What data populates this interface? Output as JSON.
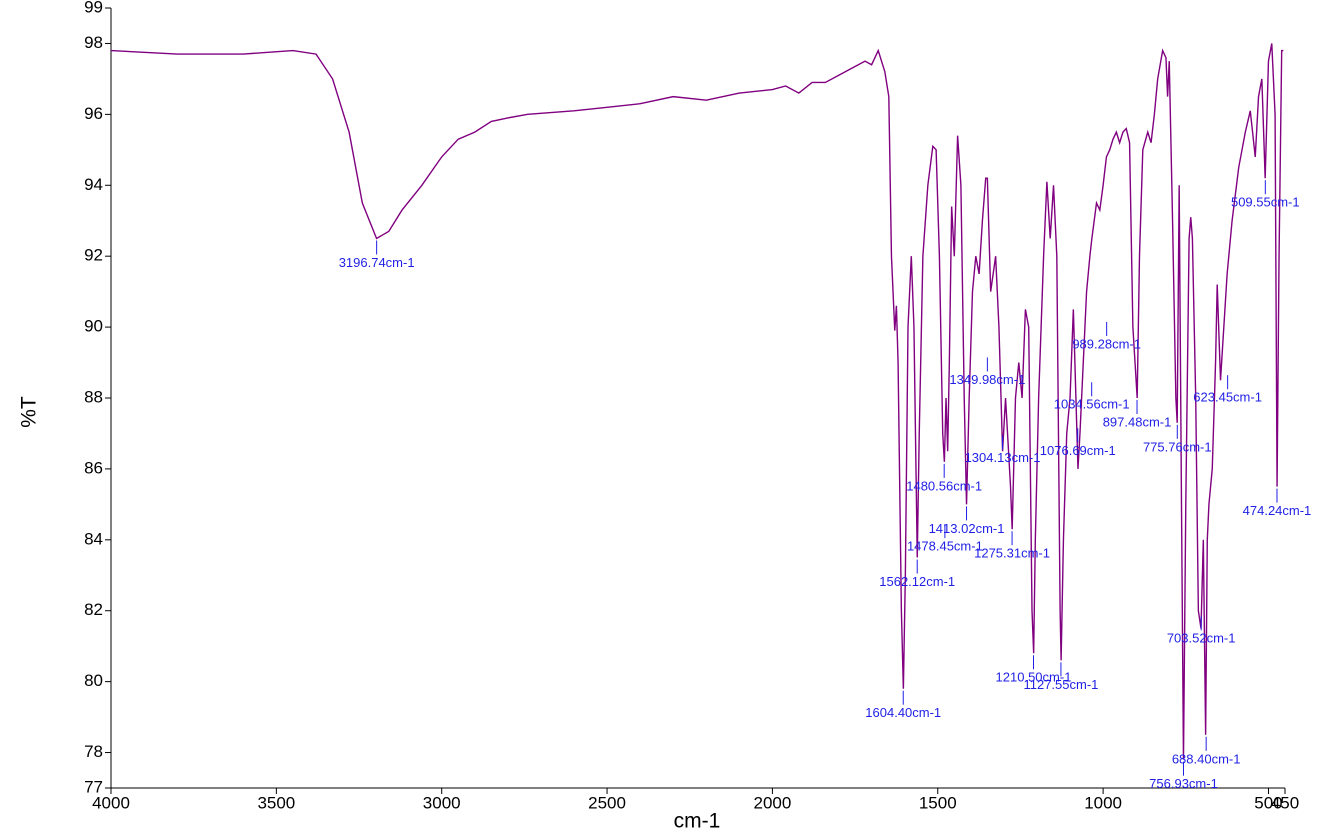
{
  "chart_data": {
    "type": "line",
    "x_label": "cm-1",
    "y_label": "%T",
    "color": "#800080",
    "annotation_color": "#1f1fe6",
    "xlim": [
      4000,
      450
    ],
    "ylim": [
      77,
      99
    ],
    "xticks": [
      4000,
      3500,
      3000,
      2500,
      2000,
      1500,
      1000,
      500,
      450
    ],
    "yticks": [
      77,
      78,
      80,
      82,
      84,
      86,
      88,
      90,
      92,
      94,
      96,
      98,
      99
    ],
    "x": [
      4000,
      3800,
      3600,
      3450,
      3380,
      3330,
      3280,
      3240,
      3197,
      3160,
      3120,
      3060,
      3000,
      2950,
      2900,
      2850,
      2800,
      2740,
      2600,
      2500,
      2400,
      2300,
      2200,
      2100,
      2000,
      1960,
      1920,
      1880,
      1840,
      1800,
      1760,
      1720,
      1700,
      1680,
      1660,
      1648,
      1640,
      1630,
      1625,
      1620,
      1610,
      1604,
      1598,
      1590,
      1580,
      1572,
      1562,
      1556,
      1545,
      1530,
      1515,
      1505,
      1495,
      1485,
      1480,
      1475,
      1470,
      1465,
      1458,
      1450,
      1440,
      1430,
      1420,
      1413,
      1405,
      1395,
      1385,
      1375,
      1365,
      1355,
      1350,
      1340,
      1325,
      1315,
      1304,
      1295,
      1280,
      1275,
      1265,
      1255,
      1245,
      1235,
      1225,
      1215,
      1210,
      1205,
      1195,
      1180,
      1170,
      1160,
      1150,
      1140,
      1130,
      1127,
      1120,
      1110,
      1100,
      1090,
      1076,
      1070,
      1060,
      1050,
      1040,
      1034,
      1020,
      1010,
      1000,
      990,
      980,
      970,
      960,
      950,
      940,
      930,
      920,
      910,
      897,
      890,
      880,
      865,
      855,
      845,
      835,
      820,
      810,
      805,
      800,
      790,
      780,
      776,
      770,
      763,
      757,
      750,
      740,
      735,
      730,
      720,
      712,
      704,
      697,
      690,
      685,
      680,
      670,
      660,
      655,
      645,
      635,
      625,
      610,
      590,
      570,
      555,
      540,
      530,
      520,
      510,
      500,
      490,
      480,
      474,
      468,
      460,
      455
    ],
    "values": [
      97.8,
      97.7,
      97.7,
      97.8,
      97.7,
      97.0,
      95.5,
      93.5,
      92.5,
      92.7,
      93.3,
      94.0,
      94.8,
      95.3,
      95.5,
      95.8,
      95.9,
      96.0,
      96.1,
      96.2,
      96.3,
      96.5,
      96.4,
      96.6,
      96.7,
      96.8,
      96.6,
      96.9,
      96.9,
      97.1,
      97.3,
      97.5,
      97.4,
      97.8,
      97.2,
      96.5,
      92,
      89.9,
      90.6,
      89,
      82,
      79.8,
      83,
      90,
      92.0,
      90,
      83.5,
      87,
      92,
      94,
      95.1,
      95,
      92,
      87,
      86.2,
      88,
      86.5,
      89,
      93.4,
      92,
      95.4,
      94,
      88,
      85,
      88,
      91,
      92,
      91.5,
      93,
      94.2,
      94.2,
      91,
      92,
      90,
      86.5,
      88,
      85.5,
      84.3,
      88,
      89,
      88,
      90.5,
      90,
      82,
      80.8,
      84,
      88,
      92,
      94.1,
      92.5,
      94.0,
      92,
      82,
      80.6,
      84,
      87,
      88,
      90.5,
      86,
      87,
      89,
      91,
      92,
      92.5,
      93.5,
      93.3,
      94,
      94.8,
      95.0,
      95.3,
      95.5,
      95.2,
      95.5,
      95.6,
      95.2,
      90,
      88,
      92,
      95,
      95.5,
      95.2,
      96.0,
      97.0,
      97.8,
      97.6,
      96.5,
      97.5,
      93,
      88,
      87.3,
      94,
      85,
      77.8,
      85,
      92.5,
      93.1,
      92.5,
      88,
      82,
      81.5,
      84,
      78.5,
      84,
      85,
      86,
      89,
      91.2,
      88.5,
      90,
      91.5,
      93,
      94.5,
      95.5,
      96.1,
      94.8,
      96.5,
      97,
      94.2,
      97.5,
      98,
      96,
      85.5,
      92,
      97.8,
      97.8
    ],
    "annotations": [
      {
        "label": "3196.74cm-1",
        "x": 3196.74,
        "y": 92.5
      },
      {
        "label": "1604.40cm-1",
        "x": 1604.4,
        "y": 79.8
      },
      {
        "label": "1562.12cm-1",
        "x": 1562.12,
        "y": 83.5
      },
      {
        "label": "1480.56cm-1",
        "x": 1480.56,
        "y": 86.2
      },
      {
        "label": "1478.45cm-1",
        "x": 1478.45,
        "y": 84.5
      },
      {
        "label": "1413.02cm-1",
        "x": 1413.02,
        "y": 85
      },
      {
        "label": "1349.98cm-1",
        "x": 1349.98,
        "y": 89.2
      },
      {
        "label": "1304.13cm-1",
        "x": 1304.13,
        "y": 87
      },
      {
        "label": "1275.31cm-1",
        "x": 1275.31,
        "y": 84.3
      },
      {
        "label": "1210.50cm-1",
        "x": 1210.5,
        "y": 80.8
      },
      {
        "label": "1127.55cm-1",
        "x": 1127.55,
        "y": 80.6
      },
      {
        "label": "1076.69cm-1",
        "x": 1076.69,
        "y": 87.2
      },
      {
        "label": "1034.56cm-1",
        "x": 1034.56,
        "y": 88.5
      },
      {
        "label": "989.28cm-1",
        "x": 989.28,
        "y": 90.2
      },
      {
        "label": "897.48cm-1",
        "x": 897.48,
        "y": 88
      },
      {
        "label": "775.76cm-1",
        "x": 775.76,
        "y": 87.3
      },
      {
        "label": "756.93cm-1",
        "x": 756.93,
        "y": 77.8
      },
      {
        "label": "703.52cm-1",
        "x": 703.52,
        "y": 81.9
      },
      {
        "label": "688.40cm-1",
        "x": 688.4,
        "y": 78.5
      },
      {
        "label": "623.45cm-1",
        "x": 623.45,
        "y": 88.7
      },
      {
        "label": "509.55cm-1",
        "x": 509.55,
        "y": 94.2
      },
      {
        "label": "474.24cm-1",
        "x": 474.24,
        "y": 85.5
      }
    ]
  }
}
